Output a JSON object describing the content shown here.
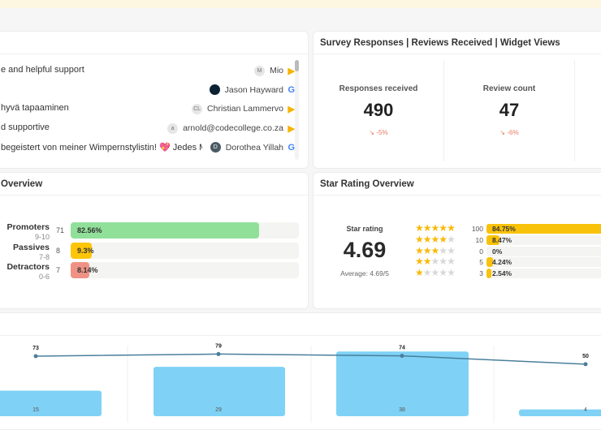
{
  "reviews": [
    {
      "text": "e and helpful support",
      "author": "Mio",
      "initials": "M",
      "source": "capterra-icon"
    },
    {
      "text": "",
      "author": "Jason Hayward",
      "initials": "",
      "source": "google-icon"
    },
    {
      "text": "hyvä tapaaminen",
      "author": "Christian Lammervo",
      "initials": "CL",
      "source": "capterra-icon"
    },
    {
      "text": "d supportive",
      "author": "arnold@codecollege.co.za",
      "initials": "a",
      "source": "capterra-icon"
    },
    {
      "text": " begeistert von meiner Wimpernstylistin! 💖 Jedes Mal, wenn ich bei ihr bin",
      "author": "Dorothea Yillah",
      "initials": "D",
      "source": "google-icon"
    }
  ],
  "survey": {
    "title": "Survey Responses | Reviews Received | Widget Views",
    "kpis": [
      {
        "label": "Responses received",
        "value": "490",
        "change": "-5%"
      },
      {
        "label": "Review count",
        "value": "47",
        "change": "-6%"
      }
    ]
  },
  "nps": {
    "title": "Overview",
    "rows": [
      {
        "label": "Promoters",
        "range": "9-10",
        "count": "71",
        "pct": "82.56%",
        "value": 82.56,
        "color": "#90e09a"
      },
      {
        "label": "Passives",
        "range": "7-8",
        "count": "8",
        "pct": "9.3%",
        "value": 9.3,
        "color": "#ffc508"
      },
      {
        "label": "Detractors",
        "range": "0-6",
        "count": "7",
        "pct": "8.14%",
        "value": 8.14,
        "color": "#ef9285"
      }
    ]
  },
  "stars": {
    "title": "Star Rating Overview",
    "label": "Star rating",
    "value": "4.69",
    "average": "Average: 4.69/5",
    "rows": [
      {
        "stars": 5,
        "count": "100",
        "pct": "84.75%",
        "value": 84.75
      },
      {
        "stars": 4,
        "count": "10",
        "pct": "8.47%",
        "value": 8.47
      },
      {
        "stars": 3,
        "count": "0",
        "pct": "0%",
        "value": 0
      },
      {
        "stars": 2,
        "count": "5",
        "pct": "4.24%",
        "value": 4.24
      },
      {
        "stars": 1,
        "count": "3",
        "pct": "2.54%",
        "value": 2.54
      }
    ]
  },
  "chart_data": {
    "type": "bar",
    "line_values": [
      73,
      79,
      74,
      50
    ],
    "bar_values": [
      15,
      29,
      38,
      4
    ],
    "bar_color": "#7fd2f5",
    "line_color": "#4a7f9b"
  }
}
